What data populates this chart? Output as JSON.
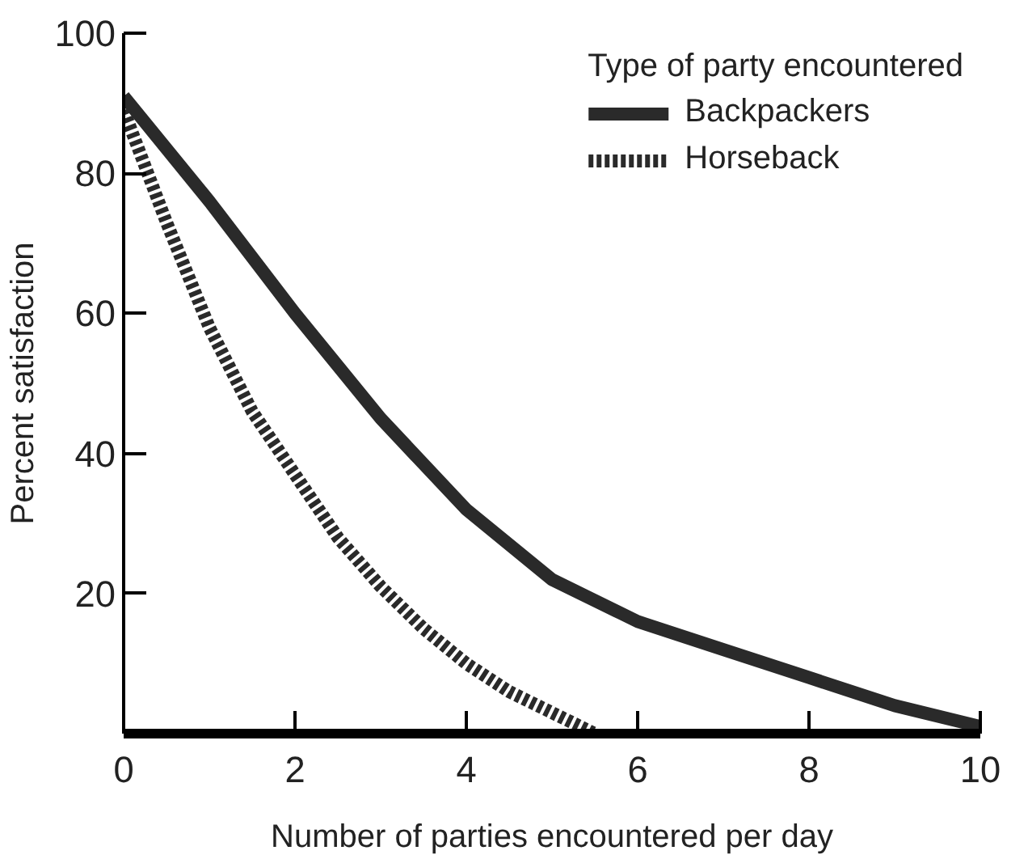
{
  "chart_data": {
    "type": "line",
    "xlabel": "Number of parties encountered per day",
    "ylabel": "Percent satisfaction",
    "legend_title": "Type of party encountered",
    "xlim": [
      0,
      10
    ],
    "ylim": [
      0,
      100
    ],
    "xticks": [
      0,
      2,
      4,
      6,
      8,
      10
    ],
    "yticks": [
      20,
      40,
      60,
      80,
      100
    ],
    "grid": false,
    "legend": "top right",
    "marker": "none",
    "series": [
      {
        "name": "Backpackers",
        "color": "#2a2a2a",
        "line_style": "solid",
        "x": [
          0,
          1,
          2,
          3,
          4,
          5,
          6,
          7,
          8,
          9,
          10
        ],
        "values": [
          91,
          76,
          60,
          45,
          32,
          22,
          16,
          12,
          8,
          4,
          1
        ]
      },
      {
        "name": "Horseback",
        "color": "#2a2a2a",
        "line_style": "dotted",
        "x": [
          0,
          0.5,
          1,
          1.5,
          2,
          2.5,
          3,
          3.5,
          4,
          4.5,
          5,
          5.5
        ],
        "values": [
          89,
          73,
          58,
          46,
          37,
          28,
          21,
          15,
          10,
          6,
          3,
          0
        ]
      }
    ]
  }
}
